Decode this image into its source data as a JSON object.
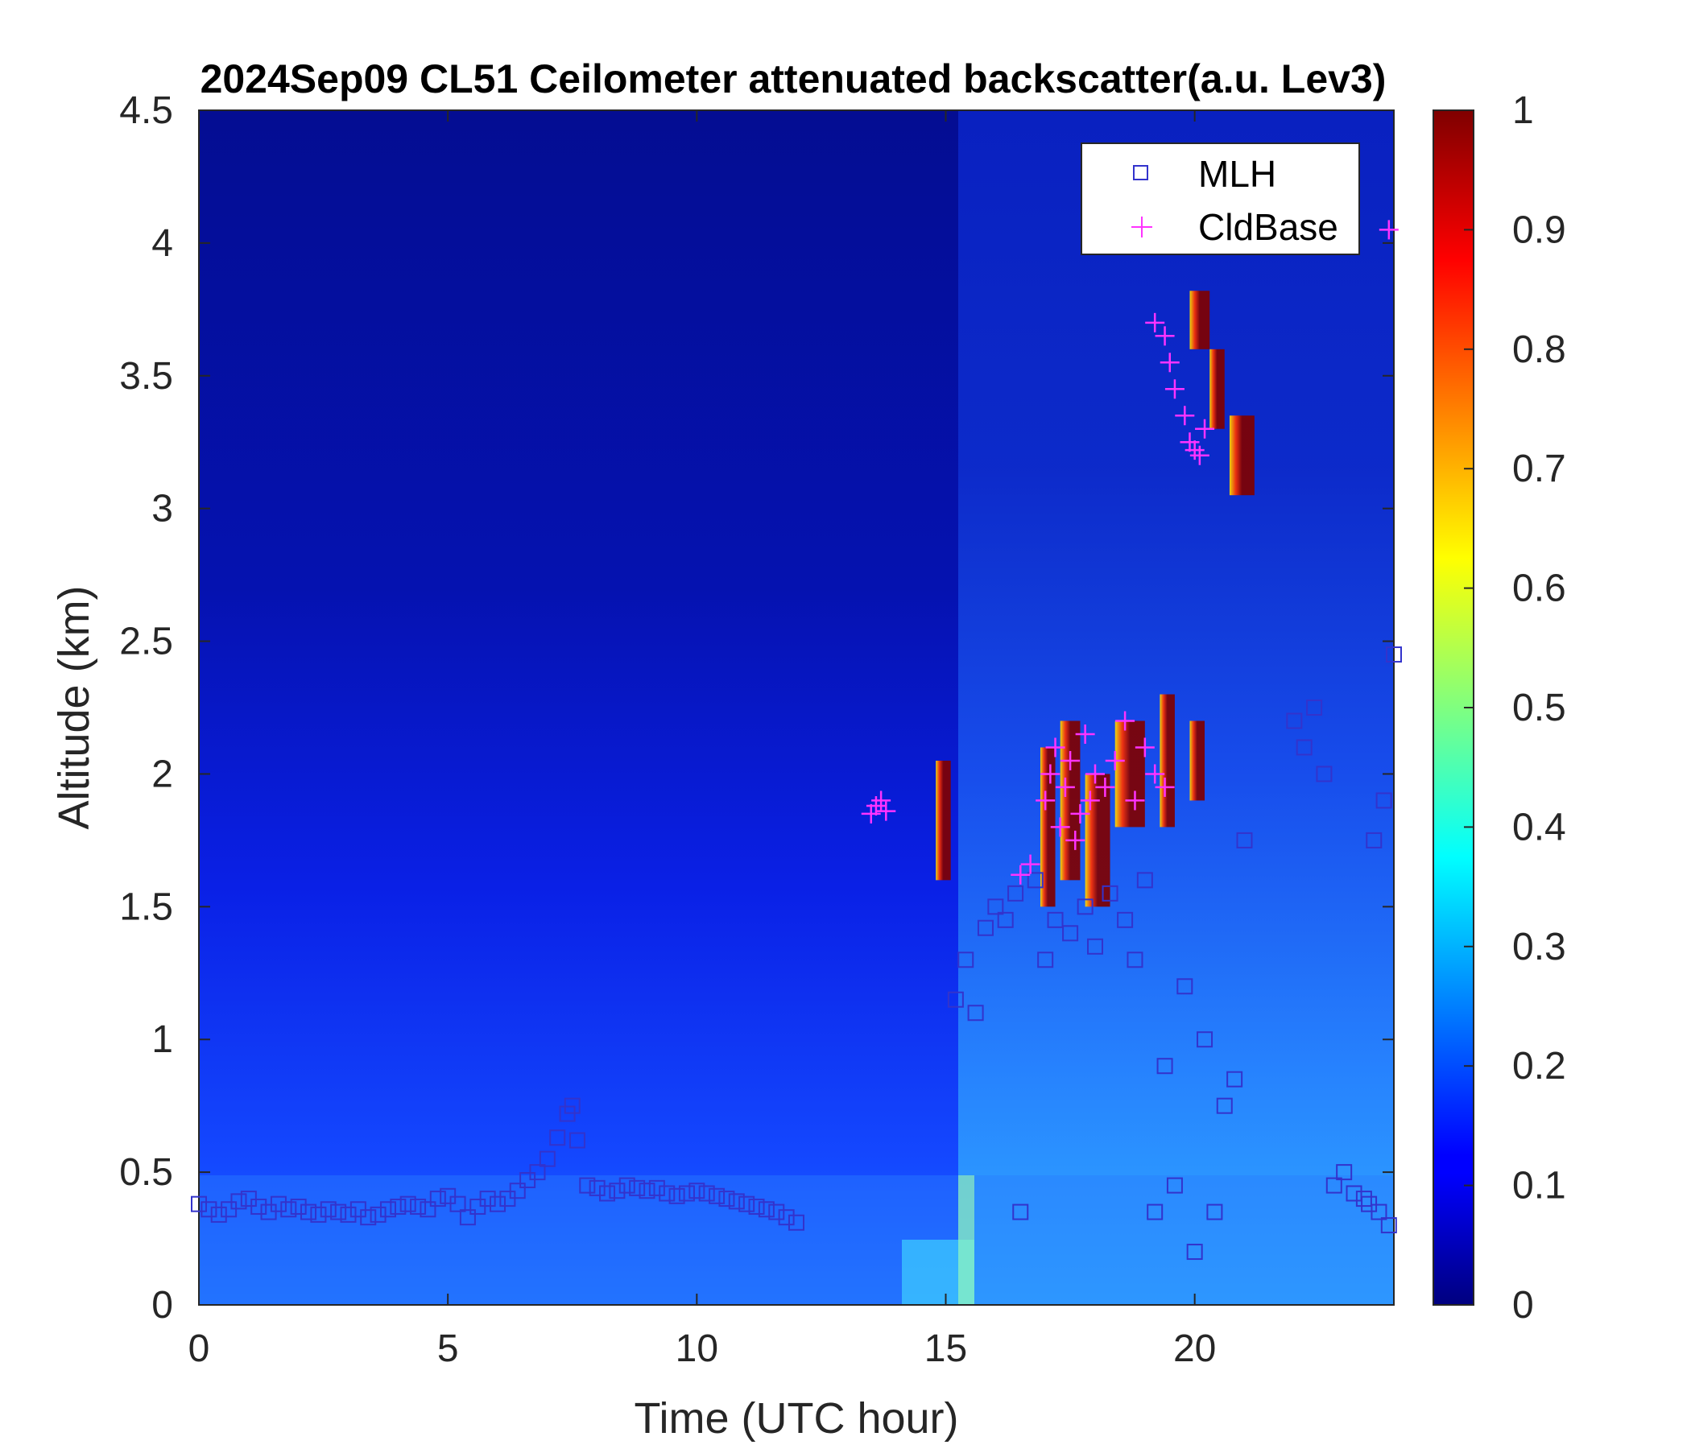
{
  "chart_data": {
    "type": "heatmap",
    "title": "2024Sep09 CL51 Ceilometer attenuated backscatter(a.u. Lev3)",
    "xlabel": "Time (UTC hour)",
    "ylabel": "Altitude (km)",
    "xlim": [
      0,
      24
    ],
    "ylim": [
      0,
      4.5
    ],
    "x_ticks": [
      0,
      5,
      10,
      15,
      20
    ],
    "y_ticks": [
      0,
      0.5,
      1,
      1.5,
      2,
      2.5,
      3,
      3.5,
      4,
      4.5
    ],
    "colorbar": {
      "colormap": "jet",
      "range": [
        0,
        1
      ],
      "ticks": [
        0,
        0.1,
        0.2,
        0.3,
        0.4,
        0.5,
        0.6,
        0.7,
        0.8,
        0.9,
        1
      ]
    },
    "legend": {
      "position": "top-right",
      "entries": [
        "MLH",
        "CldBase"
      ]
    },
    "series": [
      {
        "name": "MLH",
        "marker": "square",
        "color": "#3333cc",
        "x": [
          0,
          0.2,
          0.4,
          0.6,
          0.8,
          1.0,
          1.2,
          1.4,
          1.6,
          1.8,
          2.0,
          2.2,
          2.4,
          2.6,
          2.8,
          3.0,
          3.2,
          3.4,
          3.6,
          3.8,
          4.0,
          4.2,
          4.4,
          4.6,
          4.8,
          5.0,
          5.2,
          5.4,
          5.6,
          5.8,
          6.0,
          6.2,
          6.4,
          6.6,
          6.8,
          7.0,
          7.2,
          7.4,
          7.5,
          7.6,
          7.8,
          8.0,
          8.2,
          8.4,
          8.6,
          8.8,
          9.0,
          9.2,
          9.4,
          9.6,
          9.8,
          10.0,
          10.2,
          10.4,
          10.6,
          10.8,
          11.0,
          11.2,
          11.4,
          11.6,
          11.8,
          12.0,
          15.2,
          15.4,
          15.6,
          15.8,
          16.0,
          16.2,
          16.4,
          16.5,
          16.8,
          17.0,
          17.2,
          17.5,
          17.8,
          18.0,
          18.3,
          18.6,
          18.8,
          19.0,
          19.2,
          19.4,
          19.6,
          19.8,
          20.0,
          20.2,
          20.4,
          20.6,
          20.8,
          21.0,
          22.0,
          22.2,
          22.4,
          22.6,
          22.8,
          23.0,
          23.2,
          23.4,
          23.6,
          23.8,
          24.0,
          23.9,
          23.7,
          23.5
        ],
        "y": [
          0.38,
          0.36,
          0.34,
          0.36,
          0.39,
          0.4,
          0.37,
          0.35,
          0.38,
          0.36,
          0.37,
          0.35,
          0.34,
          0.36,
          0.35,
          0.34,
          0.36,
          0.33,
          0.34,
          0.36,
          0.37,
          0.38,
          0.37,
          0.36,
          0.4,
          0.41,
          0.38,
          0.33,
          0.37,
          0.4,
          0.38,
          0.4,
          0.43,
          0.47,
          0.5,
          0.55,
          0.63,
          0.72,
          0.75,
          0.62,
          0.45,
          0.44,
          0.42,
          0.43,
          0.45,
          0.44,
          0.43,
          0.44,
          0.42,
          0.41,
          0.42,
          0.43,
          0.42,
          0.41,
          0.4,
          0.39,
          0.38,
          0.37,
          0.36,
          0.35,
          0.33,
          0.31,
          1.15,
          1.3,
          1.1,
          1.42,
          1.5,
          1.45,
          1.55,
          0.35,
          1.6,
          1.3,
          1.45,
          1.4,
          1.5,
          1.35,
          1.55,
          1.45,
          1.3,
          1.6,
          0.35,
          0.9,
          0.45,
          1.2,
          0.2,
          1.0,
          0.35,
          0.75,
          0.85,
          1.75,
          2.2,
          2.1,
          2.25,
          2.0,
          0.45,
          0.5,
          0.42,
          0.4,
          1.75,
          1.9,
          2.45,
          0.3,
          0.35,
          0.38
        ]
      },
      {
        "name": "CldBase",
        "marker": "plus",
        "color": "#ff33ff",
        "x": [
          13.5,
          13.6,
          13.7,
          13.8,
          16.5,
          16.7,
          17.0,
          17.1,
          17.2,
          17.3,
          17.4,
          17.5,
          17.6,
          17.7,
          17.8,
          17.9,
          18.0,
          18.2,
          18.4,
          18.6,
          18.8,
          19.0,
          19.2,
          19.4,
          19.2,
          19.4,
          19.5,
          19.6,
          19.8,
          19.9,
          20.0,
          20.1,
          20.2,
          23.9
        ],
        "y": [
          1.85,
          1.88,
          1.9,
          1.86,
          1.62,
          1.66,
          1.9,
          2.0,
          2.1,
          1.8,
          1.95,
          2.05,
          1.75,
          1.85,
          2.15,
          1.9,
          2.0,
          1.95,
          2.05,
          2.2,
          1.9,
          2.1,
          2.0,
          1.95,
          3.7,
          3.65,
          3.55,
          3.45,
          3.35,
          3.25,
          3.22,
          3.2,
          3.3,
          4.05
        ]
      }
    ]
  }
}
